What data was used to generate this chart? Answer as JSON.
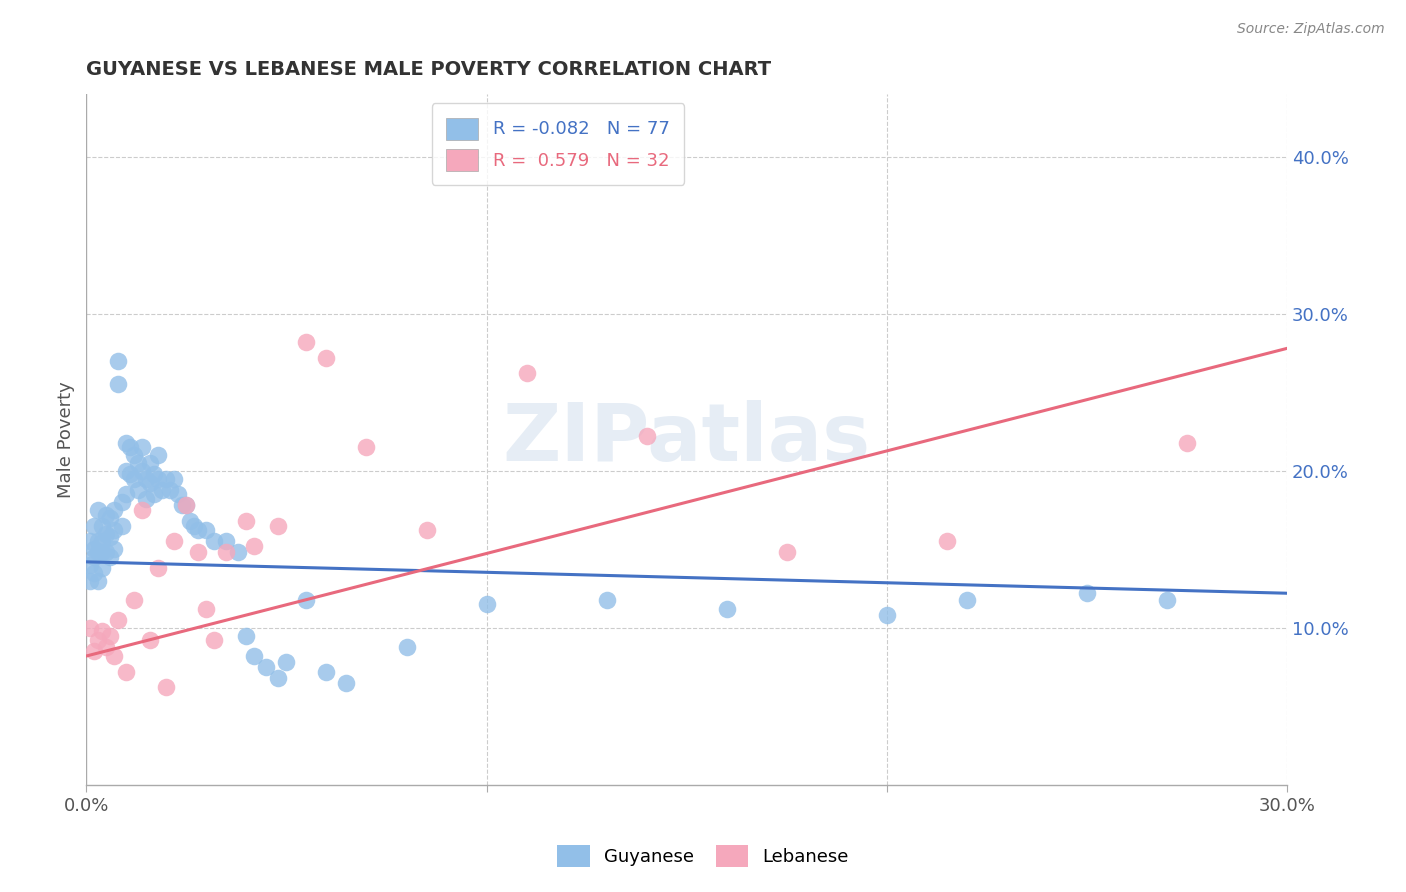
{
  "title": "GUYANESE VS LEBANESE MALE POVERTY CORRELATION CHART",
  "source": "Source: ZipAtlas.com",
  "ylabel": "Male Poverty",
  "ytick_labels": [
    "10.0%",
    "20.0%",
    "30.0%",
    "40.0%"
  ],
  "ytick_values": [
    0.1,
    0.2,
    0.3,
    0.4
  ],
  "xlim": [
    0.0,
    0.3
  ],
  "ylim": [
    0.0,
    0.44
  ],
  "watermark": "ZIPatlas",
  "legend_blue_r": "R = -0.082",
  "legend_blue_n": "N = 77",
  "legend_pink_r": "R =  0.579",
  "legend_pink_n": "N = 32",
  "blue_color": "#92bfe8",
  "pink_color": "#f5a8bc",
  "blue_line_color": "#4472c4",
  "pink_line_color": "#e8697d",
  "blue_line_start_y": 0.142,
  "blue_line_end_y": 0.122,
  "pink_line_start_y": 0.082,
  "pink_line_end_y": 0.278,
  "guyanese_x": [
    0.001,
    0.001,
    0.001,
    0.002,
    0.002,
    0.002,
    0.002,
    0.003,
    0.003,
    0.003,
    0.003,
    0.004,
    0.004,
    0.004,
    0.004,
    0.005,
    0.005,
    0.005,
    0.006,
    0.006,
    0.006,
    0.007,
    0.007,
    0.007,
    0.008,
    0.008,
    0.009,
    0.009,
    0.01,
    0.01,
    0.01,
    0.011,
    0.011,
    0.012,
    0.012,
    0.013,
    0.013,
    0.014,
    0.014,
    0.015,
    0.015,
    0.016,
    0.016,
    0.017,
    0.017,
    0.018,
    0.018,
    0.019,
    0.02,
    0.021,
    0.022,
    0.023,
    0.024,
    0.025,
    0.026,
    0.027,
    0.028,
    0.03,
    0.032,
    0.035,
    0.038,
    0.04,
    0.042,
    0.045,
    0.048,
    0.05,
    0.055,
    0.06,
    0.065,
    0.08,
    0.1,
    0.13,
    0.16,
    0.2,
    0.22,
    0.25,
    0.27
  ],
  "guyanese_y": [
    0.155,
    0.14,
    0.13,
    0.165,
    0.15,
    0.145,
    0.135,
    0.175,
    0.155,
    0.148,
    0.13,
    0.165,
    0.155,
    0.148,
    0.138,
    0.172,
    0.16,
    0.148,
    0.17,
    0.158,
    0.145,
    0.175,
    0.162,
    0.15,
    0.27,
    0.255,
    0.18,
    0.165,
    0.218,
    0.2,
    0.185,
    0.215,
    0.198,
    0.21,
    0.195,
    0.205,
    0.188,
    0.215,
    0.2,
    0.195,
    0.182,
    0.205,
    0.192,
    0.198,
    0.185,
    0.21,
    0.195,
    0.188,
    0.195,
    0.188,
    0.195,
    0.185,
    0.178,
    0.178,
    0.168,
    0.165,
    0.162,
    0.162,
    0.155,
    0.155,
    0.148,
    0.095,
    0.082,
    0.075,
    0.068,
    0.078,
    0.118,
    0.072,
    0.065,
    0.088,
    0.115,
    0.118,
    0.112,
    0.108,
    0.118,
    0.122,
    0.118
  ],
  "lebanese_x": [
    0.001,
    0.002,
    0.003,
    0.004,
    0.005,
    0.006,
    0.007,
    0.008,
    0.01,
    0.012,
    0.014,
    0.016,
    0.018,
    0.02,
    0.022,
    0.025,
    0.028,
    0.03,
    0.032,
    0.035,
    0.04,
    0.042,
    0.048,
    0.055,
    0.06,
    0.07,
    0.085,
    0.11,
    0.14,
    0.175,
    0.215,
    0.275
  ],
  "lebanese_y": [
    0.1,
    0.085,
    0.092,
    0.098,
    0.088,
    0.095,
    0.082,
    0.105,
    0.072,
    0.118,
    0.175,
    0.092,
    0.138,
    0.062,
    0.155,
    0.178,
    0.148,
    0.112,
    0.092,
    0.148,
    0.168,
    0.152,
    0.165,
    0.282,
    0.272,
    0.215,
    0.162,
    0.262,
    0.222,
    0.148,
    0.155,
    0.218
  ]
}
